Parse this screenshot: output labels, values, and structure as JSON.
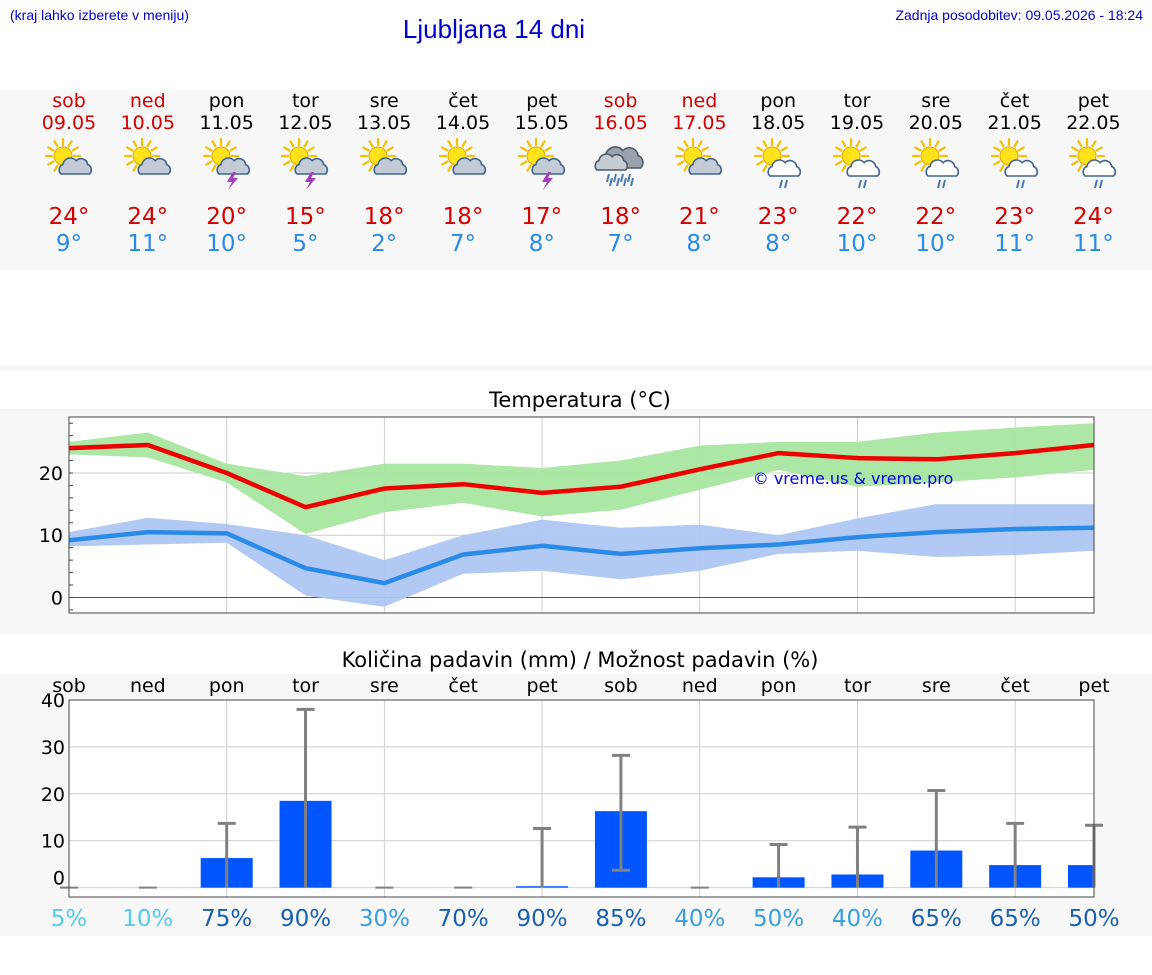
{
  "header": {
    "hint": "(kraj lahko izberete v meniju)",
    "title": "Ljubljana 14 dni",
    "updated": "Zadnja posodobitev: 09.05.2026 - 18:24"
  },
  "days": [
    {
      "name": "sob",
      "date": "09.05",
      "weekend": true,
      "icon": "sun-cloud-icon",
      "max": "24°",
      "min": "9°"
    },
    {
      "name": "ned",
      "date": "10.05",
      "weekend": true,
      "icon": "sun-cloud-icon",
      "max": "24°",
      "min": "11°"
    },
    {
      "name": "pon",
      "date": "11.05",
      "weekend": false,
      "icon": "sun-thunder-icon",
      "max": "20°",
      "min": "10°"
    },
    {
      "name": "tor",
      "date": "12.05",
      "weekend": false,
      "icon": "sun-thunder-icon",
      "max": "15°",
      "min": "5°"
    },
    {
      "name": "sre",
      "date": "13.05",
      "weekend": false,
      "icon": "sun-cloud-icon",
      "max": "18°",
      "min": "2°"
    },
    {
      "name": "čet",
      "date": "14.05",
      "weekend": false,
      "icon": "sun-cloud-icon",
      "max": "18°",
      "min": "7°"
    },
    {
      "name": "pet",
      "date": "15.05",
      "weekend": false,
      "icon": "sun-thunder-icon",
      "max": "17°",
      "min": "8°"
    },
    {
      "name": "sob",
      "date": "16.05",
      "weekend": true,
      "icon": "rain-cloud-icon",
      "max": "18°",
      "min": "7°"
    },
    {
      "name": "ned",
      "date": "17.05",
      "weekend": true,
      "icon": "sun-cloud-icon",
      "max": "21°",
      "min": "8°"
    },
    {
      "name": "pon",
      "date": "18.05",
      "weekend": false,
      "icon": "sun-rain-icon",
      "max": "23°",
      "min": "8°"
    },
    {
      "name": "tor",
      "date": "19.05",
      "weekend": false,
      "icon": "sun-rain-icon",
      "max": "22°",
      "min": "10°"
    },
    {
      "name": "sre",
      "date": "20.05",
      "weekend": false,
      "icon": "sun-rain-icon",
      "max": "22°",
      "min": "10°"
    },
    {
      "name": "čet",
      "date": "21.05",
      "weekend": false,
      "icon": "sun-rain-icon",
      "max": "23°",
      "min": "11°"
    },
    {
      "name": "pet",
      "date": "22.05",
      "weekend": false,
      "icon": "sun-rain-icon",
      "max": "24°",
      "min": "11°"
    }
  ],
  "colors": {
    "max_line": "#ee0000",
    "max_band": "#a8e6a0",
    "min_line": "#2a8ae8",
    "min_band": "#aec6f2",
    "bar": "#0055ff",
    "error": "#808080",
    "title_blue": "#0000cc"
  },
  "chart_data": [
    {
      "type": "line",
      "title": "Temperatura (°C)",
      "watermark": "© vreme.us & vreme.pro",
      "ylim": [
        -2.5,
        29
      ],
      "yticks": [
        0,
        10,
        20
      ],
      "x": [
        0,
        1,
        2,
        3,
        4,
        5,
        6,
        7,
        8,
        9,
        10,
        11,
        12,
        13
      ],
      "series": [
        {
          "values": [
            24,
            24.5,
            20,
            14.5,
            17.5,
            18.2,
            16.8,
            17.8,
            20.6,
            23.2,
            22.4,
            22.2,
            23.2,
            24.5
          ],
          "band_low": [
            23,
            22.5,
            18.5,
            10.2,
            13.7,
            15.2,
            13,
            14.1,
            17.3,
            20.5,
            17.8,
            18.5,
            19.3,
            20.5
          ],
          "band_high": [
            25,
            26.5,
            21.5,
            19.5,
            21.5,
            21.5,
            20.8,
            22,
            24.4,
            25,
            25,
            26.5,
            27.3,
            28
          ]
        },
        {
          "values": [
            9.2,
            10.5,
            10.3,
            4.7,
            2.3,
            6.9,
            8.3,
            7,
            7.9,
            8.5,
            9.7,
            10.5,
            11,
            11.2
          ],
          "band_low": [
            8.2,
            8.5,
            8.8,
            0.3,
            -1.5,
            3.8,
            4.3,
            2.9,
            4.3,
            7,
            7.5,
            6.5,
            6.8,
            7.5
          ],
          "band_high": [
            10.5,
            12.8,
            11.8,
            10,
            6,
            10,
            12.5,
            11.2,
            11.7,
            10,
            12.7,
            15,
            15,
            15
          ]
        }
      ]
    },
    {
      "type": "bar",
      "title": "Količina padavin (mm) / Možnost padavin (%)",
      "ylim": [
        -2,
        40
      ],
      "yticks": [
        0,
        10,
        20,
        30,
        40
      ],
      "categories": [
        "sob",
        "ned",
        "pon",
        "tor",
        "sre",
        "čet",
        "pet",
        "sob",
        "ned",
        "pon",
        "tor",
        "sre",
        "čet",
        "pet"
      ],
      "values": [
        0,
        0,
        6.3,
        18.5,
        0,
        0,
        0.3,
        16.3,
        0,
        2.2,
        2.8,
        7.9,
        4.8,
        4.8
      ],
      "error_high": [
        0,
        0,
        13.7,
        38,
        0,
        0,
        12.6,
        28.2,
        0,
        9.2,
        12.9,
        20.7,
        13.7,
        13.3
      ],
      "error_low": [
        0,
        0,
        0,
        0,
        0,
        0,
        0,
        3.7,
        0,
        0,
        0,
        0,
        0,
        0
      ],
      "chance": [
        "5%",
        "10%",
        "75%",
        "90%",
        "30%",
        "70%",
        "90%",
        "85%",
        "40%",
        "50%",
        "40%",
        "65%",
        "65%",
        "50%"
      ],
      "chance_colors": [
        "#55cce8",
        "#55cce8",
        "#1a60b0",
        "#1a60b0",
        "#3a9ee0",
        "#1a60b0",
        "#1a60b0",
        "#1a60b0",
        "#3a9ee0",
        "#3a9ee0",
        "#3a9ee0",
        "#1a60b0",
        "#1a60b0",
        "#1a60b0"
      ]
    }
  ]
}
